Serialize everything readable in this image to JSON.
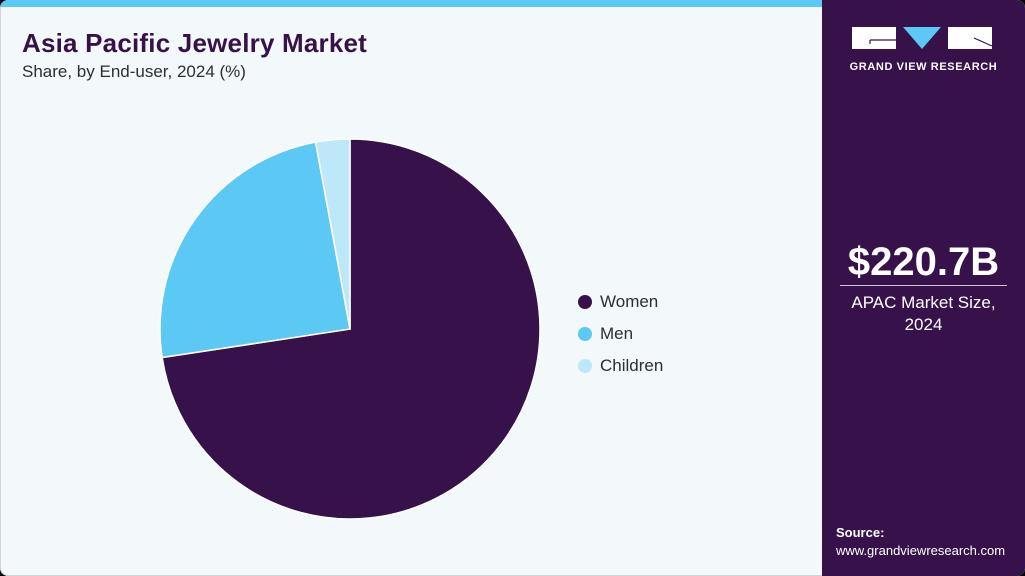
{
  "header": {
    "title": "Asia Pacific Jewelry Market",
    "subtitle": "Share, by End-user, 2024 (%)"
  },
  "brand": {
    "name": "GRAND VIEW RESEARCH",
    "logo_icon": "gvr-logo-icon"
  },
  "metric": {
    "value": "$220.7B",
    "label_line1": "APAC Market Size,",
    "label_line2": "2024"
  },
  "source": {
    "label": "Source:",
    "url": "www.grandviewresearch.com"
  },
  "colors": {
    "Women": "#37124a",
    "Men": "#5bc9f3",
    "Children": "#bde8f9",
    "accent_bar": "#5bc9f3",
    "sidebar": "#37124a"
  },
  "legend": [
    {
      "label": "Women",
      "color": "#37124a"
    },
    {
      "label": "Men",
      "color": "#5bc9f3"
    },
    {
      "label": "Children",
      "color": "#bde8f9"
    }
  ],
  "chart_data": {
    "type": "pie",
    "title": "Asia Pacific Jewelry Market",
    "subtitle": "Share, by End-user, 2024 (%)",
    "categories": [
      "Women",
      "Men",
      "Children"
    ],
    "values": [
      72.6,
      24.5,
      2.9
    ],
    "colors": [
      "#37124a",
      "#5bc9f3",
      "#bde8f9"
    ],
    "start_angle": "12 o'clock, clockwise",
    "legend_position": "right",
    "data_labels": false
  }
}
